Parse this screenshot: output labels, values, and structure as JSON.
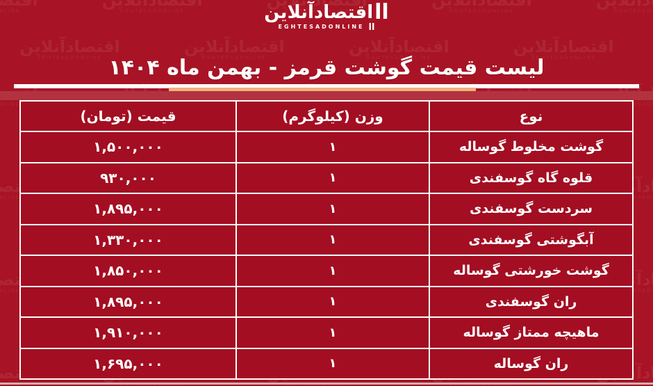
{
  "page": {
    "background_color": "#a81425",
    "cell_color": "#a30e22",
    "accent_orange": "#f0b17b",
    "bottom_line_color": "#d3adb1"
  },
  "logo": {
    "bars_tall": "اا",
    "bars_small": "اا",
    "name_fa": "اقتصادآنلاین",
    "name_en": "EGHTESADONLINE"
  },
  "watermark": {
    "name_fa": "اقتصادآنلاین",
    "name_en": "EGHTESADONLINE"
  },
  "title": "لیست قیمت گوشت قرمز - بهمن ماه ۱۴۰۴",
  "table": {
    "headers": {
      "price": "قیمت (تومان)",
      "weight": "وزن (کیلوگرم)",
      "type": "نوع"
    },
    "rows": [
      {
        "type": "گوشت مخلوط گوساله",
        "weight": "۱",
        "price": "۱,۵۰۰,۰۰۰"
      },
      {
        "type": "قلوه گاه گوسفندی",
        "weight": "۱",
        "price": "۹۳۰,۰۰۰"
      },
      {
        "type": "سردست گوسفندی",
        "weight": "۱",
        "price": "۱,۸۹۵,۰۰۰"
      },
      {
        "type": "آبگوشتی گوسفندی",
        "weight": "۱",
        "price": "۱,۳۳۰,۰۰۰"
      },
      {
        "type": "گوشت خورشتی گوساله",
        "weight": "۱",
        "price": "۱,۸۵۰,۰۰۰"
      },
      {
        "type": "ران گوسفندی",
        "weight": "۱",
        "price": "۱,۸۹۵,۰۰۰"
      },
      {
        "type": "ماهیچه ممتاز گوساله",
        "weight": "۱",
        "price": "۱,۹۱۰,۰۰۰"
      },
      {
        "type": "ران گوساله",
        "weight": "۱",
        "price": "۱,۶۹۵,۰۰۰"
      }
    ]
  },
  "chart_data": {
    "type": "table",
    "title": "لیست قیمت گوشت قرمز - بهمن ماه ۱۴۰۴",
    "columns": [
      "نوع",
      "وزن (کیلوگرم)",
      "قیمت (تومان)"
    ],
    "categories": [
      "گوشت مخلوط گوساله",
      "قلوه گاه گوسفندی",
      "سردست گوسفندی",
      "آبگوشتی گوسفندی",
      "گوشت خورشتی گوساله",
      "ران گوسفندی",
      "ماهیچه ممتاز گوساله",
      "ران گوساله"
    ],
    "weights_kg": [
      1,
      1,
      1,
      1,
      1,
      1,
      1,
      1
    ],
    "prices_toman": [
      1500000,
      930000,
      1895000,
      1330000,
      1850000,
      1895000,
      1910000,
      1695000
    ]
  }
}
